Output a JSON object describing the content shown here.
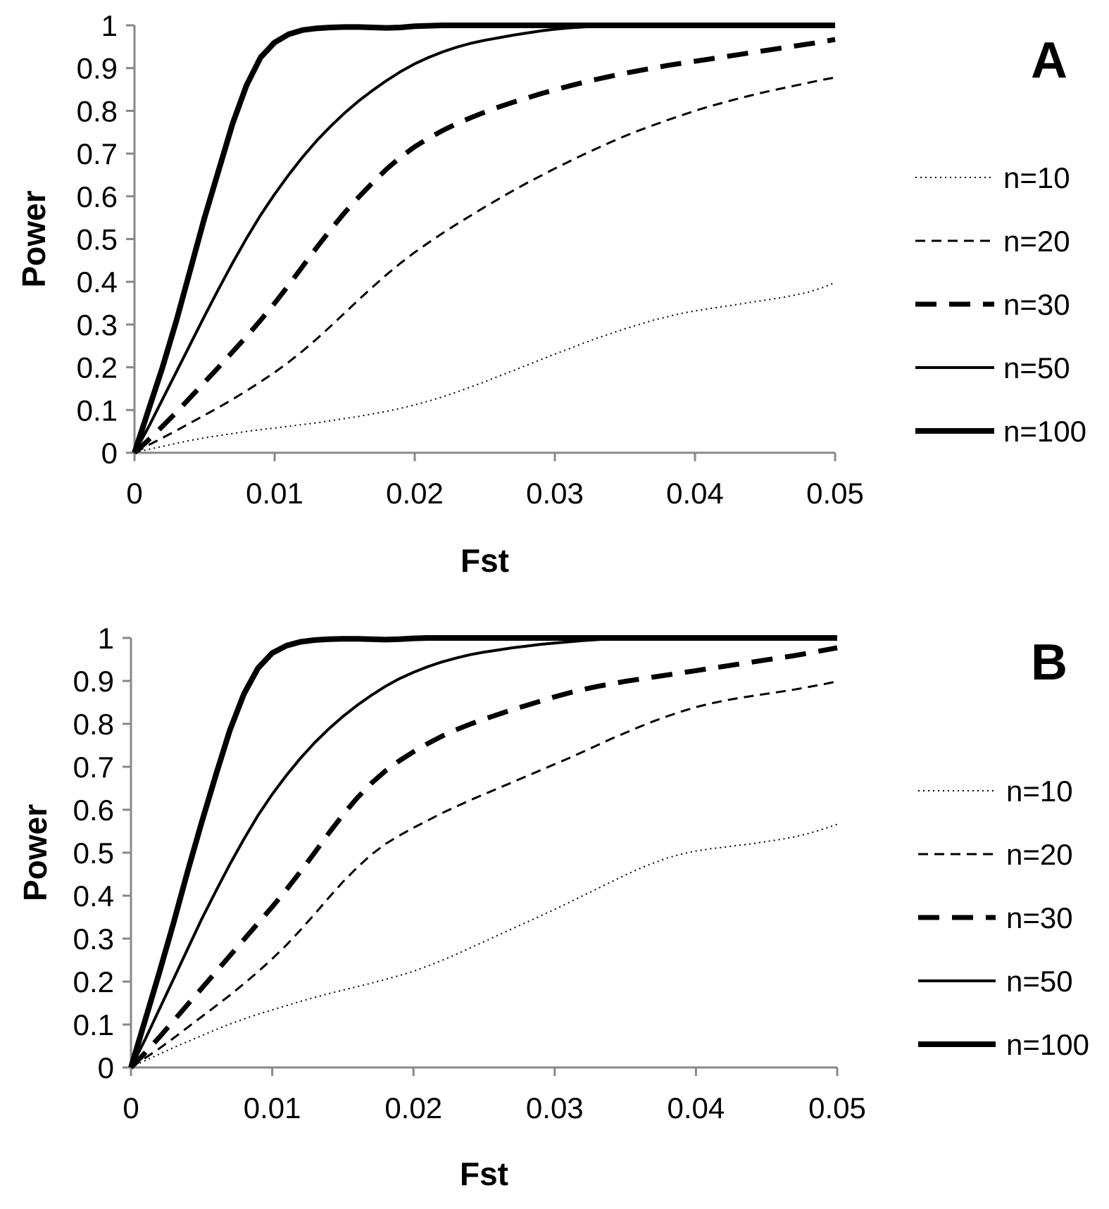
{
  "chart_data": [
    {
      "type": "line",
      "panel_label": "A",
      "xlabel": "Fst",
      "ylabel": "Power",
      "xlim": [
        0,
        0.05
      ],
      "ylim": [
        0,
        1
      ],
      "x_ticks": [
        "0",
        "0.01",
        "0.02",
        "0.03",
        "0.04",
        "0.05"
      ],
      "y_ticks": [
        "0",
        "0.1",
        "0.2",
        "0.3",
        "0.4",
        "0.5",
        "0.6",
        "0.7",
        "0.8",
        "0.9",
        "1"
      ],
      "grid": false,
      "legend_position": "right",
      "x": [
        0,
        0.001,
        0.002,
        0.003,
        0.004,
        0.005,
        0.006,
        0.007,
        0.008,
        0.009,
        0.01,
        0.011,
        0.012,
        0.013,
        0.014,
        0.015,
        0.016,
        0.017,
        0.018,
        0.019,
        0.02,
        0.021,
        0.022,
        0.023,
        0.024,
        0.025,
        0.026,
        0.027,
        0.028,
        0.029,
        0.03,
        0.031,
        0.032,
        0.033,
        0.034,
        0.035,
        0.036,
        0.037,
        0.038,
        0.039,
        0.04,
        0.041,
        0.042,
        0.043,
        0.044,
        0.045,
        0.046,
        0.047,
        0.048,
        0.049,
        0.05
      ],
      "series": [
        {
          "name": "n=10",
          "style": "dotted",
          "width": 2,
          "values": [
            0,
            0.008,
            0.015,
            0.022,
            0.029,
            0.035,
            0.04,
            0.045,
            0.05,
            0.054,
            0.058,
            0.062,
            0.066,
            0.07,
            0.075,
            0.08,
            0.085,
            0.091,
            0.097,
            0.104,
            0.112,
            0.121,
            0.131,
            0.142,
            0.154,
            0.166,
            0.179,
            0.192,
            0.205,
            0.218,
            0.231,
            0.243,
            0.256,
            0.268,
            0.279,
            0.29,
            0.3,
            0.31,
            0.318,
            0.326,
            0.332,
            0.337,
            0.342,
            0.347,
            0.352,
            0.357,
            0.362,
            0.368,
            0.375,
            0.385,
            0.398
          ]
        },
        {
          "name": "n=20",
          "style": "dashed",
          "width": 3,
          "values": [
            0,
            0.018,
            0.035,
            0.052,
            0.07,
            0.088,
            0.106,
            0.125,
            0.145,
            0.166,
            0.188,
            0.212,
            0.238,
            0.266,
            0.296,
            0.327,
            0.358,
            0.388,
            0.417,
            0.444,
            0.469,
            0.492,
            0.514,
            0.535,
            0.555,
            0.575,
            0.594,
            0.613,
            0.631,
            0.648,
            0.665,
            0.681,
            0.697,
            0.712,
            0.727,
            0.741,
            0.754,
            0.766,
            0.778,
            0.789,
            0.8,
            0.81,
            0.819,
            0.828,
            0.836,
            0.844,
            0.851,
            0.858,
            0.865,
            0.872,
            0.878
          ]
        },
        {
          "name": "n=30",
          "style": "bold-dashed",
          "width": 7,
          "values": [
            0,
            0.03,
            0.062,
            0.095,
            0.13,
            0.165,
            0.2,
            0.236,
            0.272,
            0.31,
            0.35,
            0.392,
            0.436,
            0.48,
            0.522,
            0.562,
            0.598,
            0.632,
            0.664,
            0.692,
            0.716,
            0.736,
            0.754,
            0.77,
            0.784,
            0.797,
            0.809,
            0.82,
            0.83,
            0.84,
            0.849,
            0.858,
            0.866,
            0.874,
            0.881,
            0.888,
            0.894,
            0.9,
            0.906,
            0.911,
            0.916,
            0.921,
            0.926,
            0.931,
            0.936,
            0.941,
            0.946,
            0.951,
            0.956,
            0.961,
            0.967
          ]
        },
        {
          "name": "n=50",
          "style": "solid",
          "width": 4,
          "values": [
            0,
            0.06,
            0.125,
            0.19,
            0.255,
            0.32,
            0.383,
            0.444,
            0.502,
            0.556,
            0.605,
            0.65,
            0.692,
            0.73,
            0.764,
            0.795,
            0.823,
            0.848,
            0.871,
            0.892,
            0.91,
            0.925,
            0.938,
            0.949,
            0.958,
            0.965,
            0.971,
            0.977,
            0.982,
            0.987,
            0.991,
            0.994,
            0.996,
            0.998,
            0.999,
            1,
            1,
            1,
            1,
            1,
            1,
            1,
            1,
            1,
            1,
            1,
            1,
            1,
            1,
            1,
            1
          ]
        },
        {
          "name": "n=100",
          "style": "bold-solid",
          "width": 8,
          "values": [
            0,
            0.1,
            0.2,
            0.31,
            0.43,
            0.55,
            0.66,
            0.77,
            0.86,
            0.925,
            0.96,
            0.979,
            0.989,
            0.993,
            0.995,
            0.996,
            0.996,
            0.995,
            0.994,
            0.995,
            0.998,
            0.999,
            1,
            1,
            1,
            1,
            1,
            1,
            1,
            1,
            1,
            1,
            1,
            1,
            1,
            1,
            1,
            1,
            1,
            1,
            1,
            1,
            1,
            1,
            1,
            1,
            1,
            1,
            1,
            1,
            1
          ]
        }
      ]
    },
    {
      "type": "line",
      "panel_label": "B",
      "xlabel": "Fst",
      "ylabel": "Power",
      "xlim": [
        0,
        0.05
      ],
      "ylim": [
        0,
        1
      ],
      "x_ticks": [
        "0",
        "0.01",
        "0.02",
        "0.03",
        "0.04",
        "0.05"
      ],
      "y_ticks": [
        "0",
        "0.1",
        "0.2",
        "0.3",
        "0.4",
        "0.5",
        "0.6",
        "0.7",
        "0.8",
        "0.9",
        "1"
      ],
      "grid": false,
      "legend_position": "right",
      "x": [
        0,
        0.001,
        0.002,
        0.003,
        0.004,
        0.005,
        0.006,
        0.007,
        0.008,
        0.009,
        0.01,
        0.011,
        0.012,
        0.013,
        0.014,
        0.015,
        0.016,
        0.017,
        0.018,
        0.019,
        0.02,
        0.021,
        0.022,
        0.023,
        0.024,
        0.025,
        0.026,
        0.027,
        0.028,
        0.029,
        0.03,
        0.031,
        0.032,
        0.033,
        0.034,
        0.035,
        0.036,
        0.037,
        0.038,
        0.039,
        0.04,
        0.041,
        0.042,
        0.043,
        0.044,
        0.045,
        0.046,
        0.047,
        0.048,
        0.049,
        0.05
      ],
      "series": [
        {
          "name": "n=10",
          "style": "dotted",
          "width": 2,
          "values": [
            0,
            0.016,
            0.031,
            0.046,
            0.06,
            0.074,
            0.088,
            0.101,
            0.113,
            0.124,
            0.134,
            0.144,
            0.154,
            0.163,
            0.172,
            0.18,
            0.188,
            0.196,
            0.205,
            0.214,
            0.224,
            0.236,
            0.249,
            0.263,
            0.278,
            0.293,
            0.308,
            0.323,
            0.338,
            0.353,
            0.368,
            0.384,
            0.4,
            0.416,
            0.432,
            0.448,
            0.463,
            0.476,
            0.488,
            0.497,
            0.504,
            0.509,
            0.513,
            0.517,
            0.521,
            0.526,
            0.531,
            0.537,
            0.545,
            0.555,
            0.566
          ]
        },
        {
          "name": "n=20",
          "style": "dashed",
          "width": 3,
          "values": [
            0,
            0.022,
            0.044,
            0.068,
            0.093,
            0.118,
            0.143,
            0.168,
            0.195,
            0.223,
            0.253,
            0.285,
            0.32,
            0.357,
            0.395,
            0.432,
            0.465,
            0.495,
            0.52,
            0.54,
            0.558,
            0.575,
            0.592,
            0.607,
            0.622,
            0.636,
            0.65,
            0.664,
            0.678,
            0.692,
            0.706,
            0.72,
            0.735,
            0.75,
            0.765,
            0.779,
            0.793,
            0.806,
            0.818,
            0.829,
            0.839,
            0.847,
            0.854,
            0.86,
            0.865,
            0.87,
            0.875,
            0.88,
            0.886,
            0.892,
            0.899
          ]
        },
        {
          "name": "n=30",
          "style": "bold-dashed",
          "width": 7,
          "values": [
            0,
            0.034,
            0.07,
            0.108,
            0.146,
            0.184,
            0.222,
            0.26,
            0.298,
            0.336,
            0.374,
            0.414,
            0.456,
            0.5,
            0.545,
            0.588,
            0.627,
            0.661,
            0.69,
            0.714,
            0.735,
            0.754,
            0.771,
            0.786,
            0.799,
            0.811,
            0.822,
            0.833,
            0.843,
            0.853,
            0.863,
            0.872,
            0.88,
            0.887,
            0.893,
            0.899,
            0.904,
            0.909,
            0.914,
            0.919,
            0.924,
            0.929,
            0.934,
            0.939,
            0.944,
            0.949,
            0.954,
            0.959,
            0.965,
            0.971,
            0.977
          ]
        },
        {
          "name": "n=50",
          "style": "solid",
          "width": 4,
          "values": [
            0,
            0.065,
            0.135,
            0.205,
            0.275,
            0.345,
            0.41,
            0.473,
            0.532,
            0.587,
            0.636,
            0.68,
            0.72,
            0.756,
            0.788,
            0.817,
            0.843,
            0.866,
            0.887,
            0.905,
            0.92,
            0.933,
            0.944,
            0.953,
            0.961,
            0.967,
            0.972,
            0.977,
            0.981,
            0.985,
            0.988,
            0.991,
            0.994,
            0.996,
            0.998,
            0.999,
            1,
            1,
            1,
            1,
            1,
            1,
            1,
            1,
            1,
            1,
            1,
            1,
            1,
            1,
            1
          ]
        },
        {
          "name": "n=100",
          "style": "bold-solid",
          "width": 8,
          "values": [
            0,
            0.11,
            0.22,
            0.335,
            0.455,
            0.57,
            0.68,
            0.785,
            0.87,
            0.93,
            0.965,
            0.982,
            0.991,
            0.995,
            0.997,
            0.998,
            0.998,
            0.997,
            0.996,
            0.997,
            0.999,
            1,
            1,
            1,
            1,
            1,
            1,
            1,
            1,
            1,
            1,
            1,
            1,
            1,
            1,
            1,
            1,
            1,
            1,
            1,
            1,
            1,
            1,
            1,
            1,
            1,
            1,
            1,
            1,
            1,
            1
          ]
        }
      ]
    }
  ]
}
